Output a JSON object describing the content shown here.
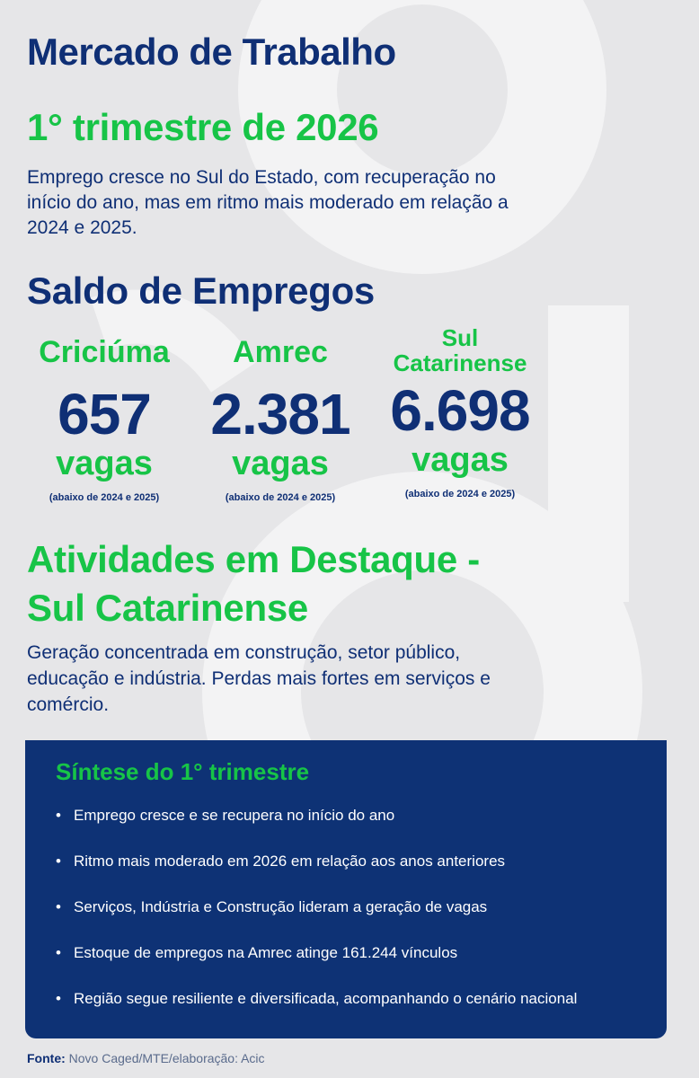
{
  "header": {
    "title": "Mercado de Trabalho",
    "subtitle": "1° trimestre de 2026",
    "intro": "Emprego cresce no Sul do Estado, com recuperação no início do ano, mas em ritmo mais moderado em relação a 2024 e 2025."
  },
  "saldo": {
    "title": "Saldo de Empregos",
    "items": [
      {
        "name": "Criciúma",
        "value": "657",
        "unit": "vagas",
        "note": "(abaixo de 2024 e 2025)"
      },
      {
        "name": "Amrec",
        "value": "2.381",
        "unit": "vagas",
        "note": "(abaixo de 2024 e 2025)"
      },
      {
        "name_line1": "Sul",
        "name_line2": "Catarinense",
        "value": "6.698",
        "unit": "vagas",
        "note": "(abaixo de 2024 e 2025)"
      }
    ]
  },
  "atividades": {
    "title_line1": "Atividades em Destaque -",
    "title_line2": "Sul Catarinense",
    "text": "Geração concentrada em construção, setor público, educação e indústria. Perdas mais fortes em serviços e comércio."
  },
  "sintese": {
    "title": "Síntese do 1° trimestre",
    "bullet_glyph": "•",
    "items": [
      "Emprego cresce e se recupera no início do ano",
      "Ritmo mais moderado em 2026 em relação aos anos anteriores",
      "Serviços, Indústria e Construção lideram a geração de vagas",
      "Estoque de empregos na Amrec atinge 161.244 vínculos",
      "Região segue resiliente e diversificada, acompanhando o cenário nacional"
    ]
  },
  "footer": {
    "label": "Fonte:",
    "text": " Novo Caged/MTE/elaboração: Acic"
  },
  "colors": {
    "navy": "#0f2f75",
    "green": "#17c447",
    "background": "#e6e6e8",
    "panel": "#0e3275"
  }
}
